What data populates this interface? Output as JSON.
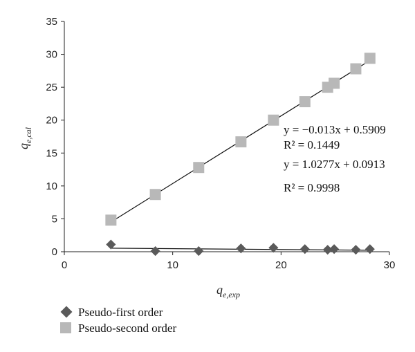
{
  "chart_data": {
    "type": "scatter",
    "xlabel_main": "q",
    "xlabel_sub": "e,exp",
    "ylabel_main": "q",
    "ylabel_sub": "e,cal",
    "xlim": [
      0,
      30
    ],
    "ylim": [
      0,
      35
    ],
    "xticks": [
      0,
      10,
      20,
      30
    ],
    "yticks": [
      0,
      5,
      10,
      15,
      20,
      25,
      30,
      35
    ],
    "grid": false,
    "legend_position": "bottom-left",
    "series": [
      {
        "name": "Pseudo-first order",
        "marker": "diamond",
        "color": "#5a5a5a",
        "points": [
          [
            4.3,
            1.1
          ],
          [
            8.4,
            0.1
          ],
          [
            12.4,
            0.1
          ],
          [
            16.3,
            0.5
          ],
          [
            19.3,
            0.6
          ],
          [
            22.2,
            0.4
          ],
          [
            24.3,
            0.3
          ],
          [
            24.9,
            0.4
          ],
          [
            26.9,
            0.3
          ],
          [
            28.2,
            0.4
          ]
        ],
        "trendline": {
          "slope": -0.013,
          "intercept": 0.5909,
          "x_range": [
            4.3,
            28.2
          ]
        },
        "equation": "y = −0.013x + 0.5909",
        "r2": "R² = 0.1449"
      },
      {
        "name": "Pseudo-second order",
        "marker": "square",
        "color": "#b8b8b8",
        "points": [
          [
            4.3,
            4.8
          ],
          [
            8.4,
            8.7
          ],
          [
            12.4,
            12.8
          ],
          [
            16.3,
            16.7
          ],
          [
            19.3,
            20.0
          ],
          [
            22.2,
            22.8
          ],
          [
            24.3,
            25.0
          ],
          [
            24.9,
            25.6
          ],
          [
            26.9,
            27.8
          ],
          [
            28.2,
            29.4
          ]
        ],
        "trendline": {
          "slope": 1.0277,
          "intercept": 0.0913,
          "x_range": [
            4.3,
            28.2
          ]
        },
        "equation": "y = 1.0277x + 0.0913",
        "r2": "R² = 0.9998"
      }
    ]
  }
}
